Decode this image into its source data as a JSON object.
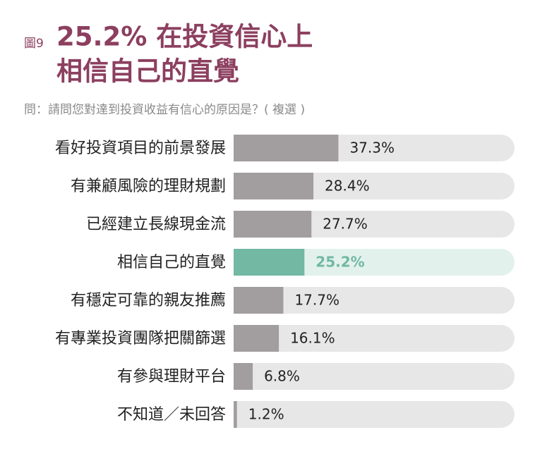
{
  "chart_data": {
    "type": "bar",
    "orientation": "horizontal",
    "figure_label": "圖9",
    "title_lines": [
      "25.2% 在投資信心上",
      "相信自己的直覺"
    ],
    "subtitle": "問：請問您對達到投資收益有信心的原因是？( 複選 )",
    "categories": [
      "看好投資項目的前景發展",
      "有兼顧風險的理財規劃",
      "已經建立長線現金流",
      "相信自己的直覺",
      "有穩定可靠的親友推薦",
      "有專業投資團隊把關篩選",
      "有參與理財平台",
      "不知道／未回答"
    ],
    "values": [
      37.3,
      28.4,
      27.7,
      25.2,
      17.7,
      16.1,
      6.8,
      1.2
    ],
    "value_labels": [
      "37.3%",
      "28.4%",
      "27.7%",
      "25.2%",
      "17.7%",
      "16.1%",
      "6.8%",
      "1.2%"
    ],
    "xlim": [
      0,
      100
    ],
    "color": "#a29d9e",
    "track_color": "#e8e7e7",
    "highlight_index": 3,
    "highlight_color": "#72b8a3",
    "highlight_track_color": "#e2f1ec",
    "title_color": "#8c3f5f"
  }
}
